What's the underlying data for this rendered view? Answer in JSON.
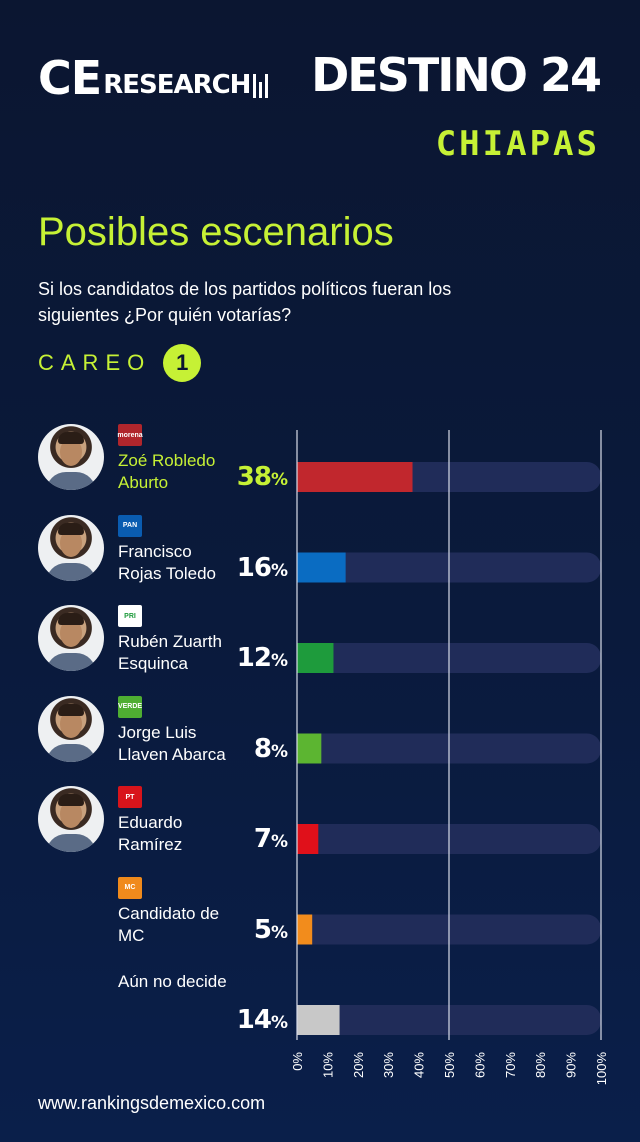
{
  "header": {
    "logo_big": "CE",
    "logo_small": "RESEARCH",
    "title": "DESTINO 24",
    "subtitle": "CHIAPAS"
  },
  "heading": "Posibles escenarios",
  "question": "Si los candidatos de los partidos políticos fueran los siguientes ¿Por quién votarías?",
  "careo": {
    "label": "CAREO",
    "number": "1"
  },
  "chart_data": {
    "type": "bar",
    "orientation": "horizontal",
    "categories": [
      "Zoé Robledo Aburto",
      "Francisco Rojas Toledo",
      "Rubén Zuarth Esquinca",
      "Jorge Luis Llaven Abarca",
      "Eduardo Ramírez",
      "Candidato de MC",
      "Aún no decide"
    ],
    "values": [
      38,
      16,
      12,
      8,
      7,
      5,
      14
    ],
    "xlim": [
      0,
      100
    ],
    "ticks": [
      "0%",
      "10%",
      "20%",
      "30%",
      "40%",
      "50%",
      "60%",
      "70%",
      "80%",
      "90%",
      "100%"
    ],
    "bar_colors": [
      "#c1272d",
      "#0a6cc2",
      "#1e9b3c",
      "#5cb531",
      "#e0101a",
      "#f28c1c",
      "#c8c8c8"
    ],
    "gridlines": [
      0,
      50,
      100
    ]
  },
  "rows": [
    {
      "party": "morena",
      "party_color": "#b0262c",
      "name": "Zoé Robledo Aburto",
      "pct": "38",
      "highlight": true,
      "photo": true
    },
    {
      "party": "PAN",
      "party_color": "#0a5cb0",
      "name": "Francisco Rojas Toledo",
      "pct": "16",
      "highlight": false,
      "photo": true
    },
    {
      "party": "PRI",
      "party_color": "#ffffff",
      "name": "Rubén Zuarth Esquinca",
      "pct": "12",
      "highlight": false,
      "photo": true
    },
    {
      "party": "VERDE",
      "party_color": "#4fae32",
      "name": "Jorge Luis Llaven Abarca",
      "pct": "8",
      "highlight": false,
      "photo": true
    },
    {
      "party": "PT",
      "party_color": "#d8141b",
      "name": "Eduardo Ramírez",
      "pct": "7",
      "highlight": false,
      "photo": true
    },
    {
      "party": "MC",
      "party_color": "#f08a1c",
      "name": "Candidato de MC",
      "pct": "5",
      "highlight": false,
      "photo": false
    },
    {
      "party": "",
      "party_color": "",
      "name": "Aún no decide",
      "pct": "14",
      "highlight": false,
      "photo": false
    }
  ],
  "percent_sign": "%",
  "footer": "www.rankingsdemexico.com"
}
